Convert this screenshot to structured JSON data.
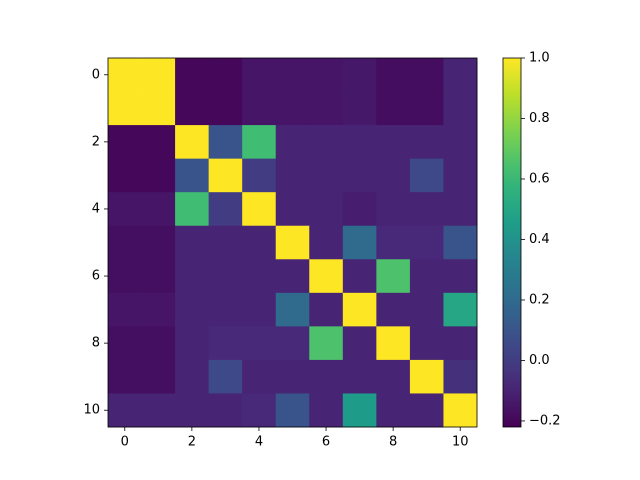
{
  "chart_data": {
    "type": "heatmap",
    "colormap": "viridis",
    "z": [
      [
        1,
        1,
        -0.2,
        -0.2,
        -0.15,
        -0.15,
        -0.15,
        -0.14,
        -0.18,
        -0.18,
        -0.1
      ],
      [
        1,
        1,
        -0.2,
        -0.2,
        -0.15,
        -0.15,
        -0.15,
        -0.14,
        -0.18,
        -0.18,
        -0.1
      ],
      [
        -0.2,
        -0.2,
        1,
        0.1,
        0.62,
        -0.1,
        -0.1,
        -0.1,
        -0.1,
        -0.1,
        -0.1
      ],
      [
        -0.2,
        -0.2,
        0.1,
        1,
        0,
        -0.1,
        -0.1,
        -0.1,
        -0.1,
        0.05,
        -0.1
      ],
      [
        -0.15,
        -0.15,
        0.62,
        0,
        1,
        -0.1,
        -0.1,
        -0.12,
        -0.1,
        -0.1,
        -0.1
      ],
      [
        -0.17,
        -0.17,
        -0.1,
        -0.1,
        -0.1,
        1,
        -0.1,
        0.2,
        -0.08,
        -0.08,
        0.1
      ],
      [
        -0.17,
        -0.17,
        -0.1,
        -0.1,
        -0.1,
        -0.1,
        1,
        -0.1,
        0.65,
        -0.1,
        -0.1
      ],
      [
        -0.15,
        -0.15,
        -0.1,
        -0.1,
        -0.1,
        0.2,
        -0.1,
        1,
        -0.1,
        -0.1,
        0.5
      ],
      [
        -0.17,
        -0.17,
        -0.1,
        -0.08,
        -0.08,
        -0.08,
        0.65,
        -0.1,
        1,
        -0.1,
        -0.1
      ],
      [
        -0.17,
        -0.17,
        -0.1,
        0.05,
        -0.1,
        -0.1,
        -0.1,
        -0.1,
        -0.1,
        1,
        -0.05
      ],
      [
        -0.1,
        -0.1,
        -0.1,
        -0.1,
        -0.08,
        0.1,
        -0.1,
        0.45,
        -0.1,
        -0.1,
        1
      ]
    ],
    "xlim": [
      -0.5,
      10.5
    ],
    "ylim": [
      10.5,
      -0.5
    ],
    "xticks": [
      0,
      2,
      4,
      6,
      8,
      10
    ],
    "yticks": [
      0,
      2,
      4,
      6,
      8,
      10
    ],
    "clim": [
      -0.22,
      1.0
    ],
    "cticks": [
      {
        "value": -0.2,
        "label": "−0.2"
      },
      {
        "value": 0,
        "label": "0.0"
      },
      0.2,
      0.4,
      0.6,
      0.8,
      {
        "value": 1,
        "label": "1.0"
      }
    ]
  }
}
